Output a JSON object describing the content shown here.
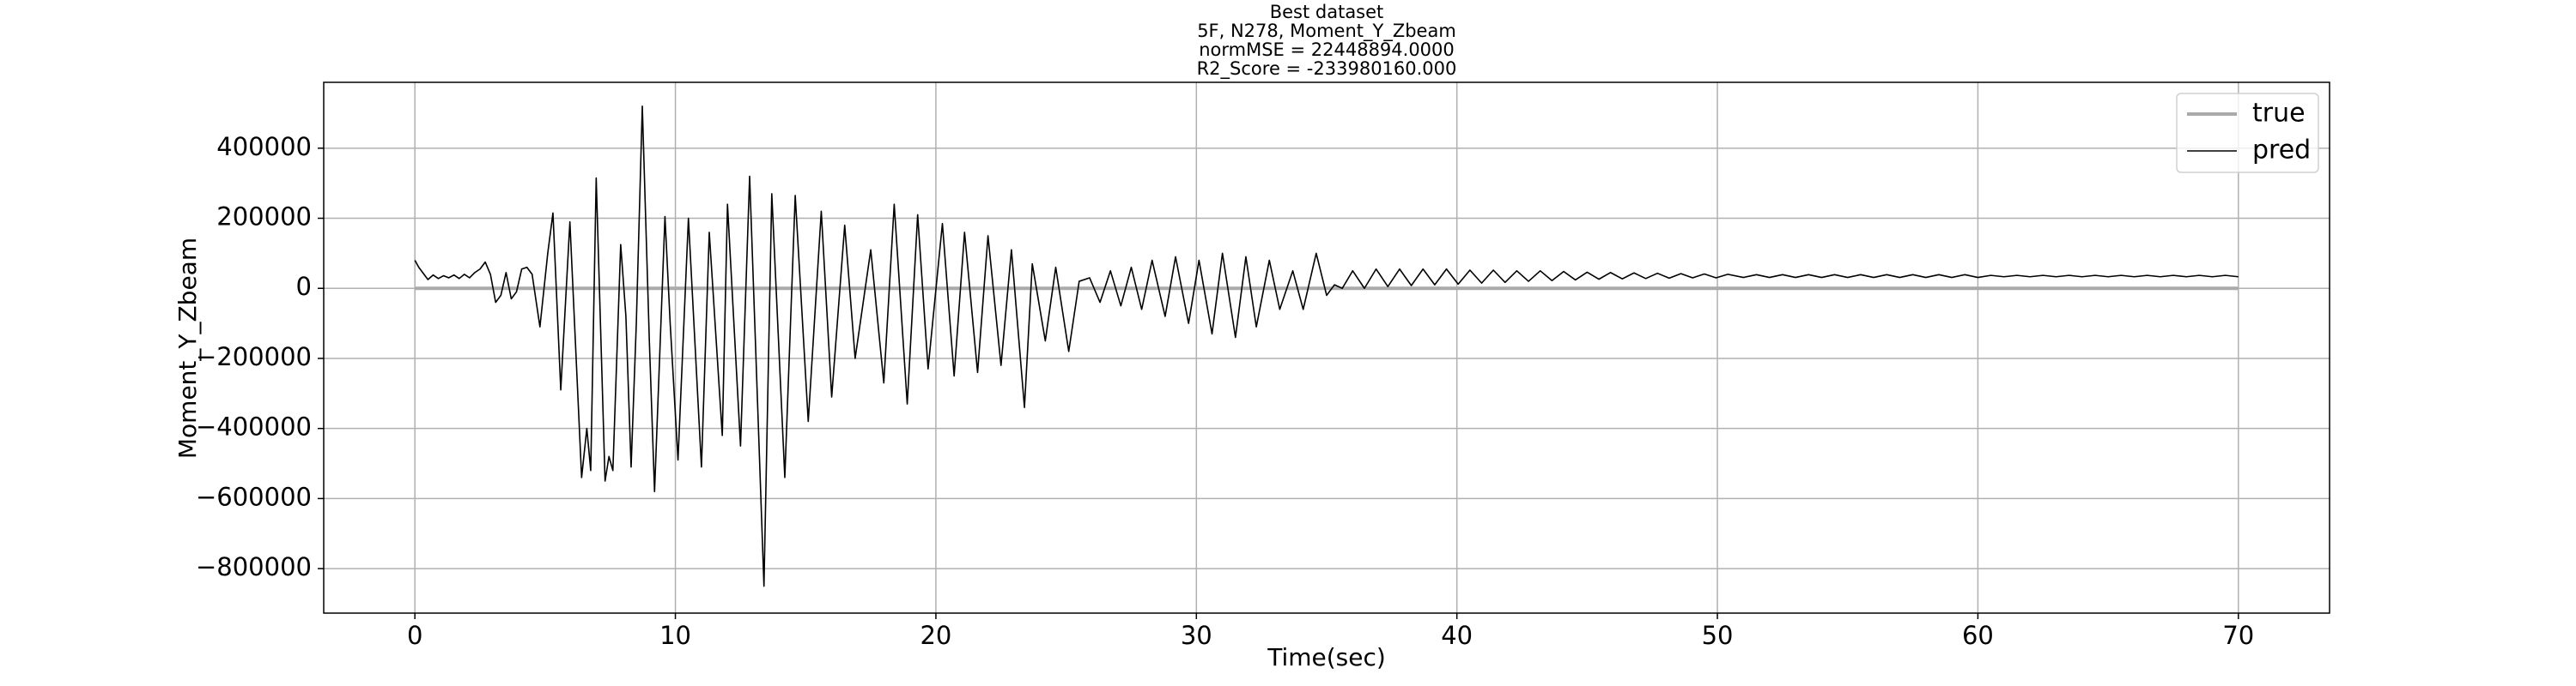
{
  "chart_data": {
    "type": "line",
    "title": [
      "Best dataset",
      "5F, N278, Moment_Y_Zbeam",
      "normMSE = 22448894.0000",
      "R2_Score = -233980160.000"
    ],
    "xlabel": "Time(sec)",
    "ylabel": "Moment_Y_Zbeam",
    "xlim": [
      -3.5,
      73.5
    ],
    "ylim": [
      -927000,
      588000
    ],
    "xticks": [
      0,
      10,
      20,
      30,
      40,
      50,
      60,
      70
    ],
    "yticks": [
      {
        "value": -800000,
        "label": "−800000"
      },
      {
        "value": -600000,
        "label": "−600000"
      },
      {
        "value": -400000,
        "label": "−400000"
      },
      {
        "value": -200000,
        "label": "−200000"
      },
      0,
      200000,
      400000
    ],
    "grid": true,
    "legend": "upper right",
    "series": [
      {
        "name": "true",
        "color": "#aaaaaa",
        "x": [
          0,
          70
        ],
        "values": [
          0,
          0
        ]
      },
      {
        "name": "pred",
        "color": "#000000",
        "x": [
          0,
          0.15,
          0.3,
          0.5,
          0.7,
          0.9,
          1.1,
          1.3,
          1.5,
          1.7,
          1.9,
          2.1,
          2.3,
          2.5,
          2.7,
          2.9,
          3.1,
          3.3,
          3.5,
          3.7,
          3.9,
          4.1,
          4.3,
          4.5,
          4.7,
          4.8,
          5.1,
          5.3,
          5.6,
          5.95,
          6.4,
          6.6,
          6.75,
          6.96,
          7.3,
          7.45,
          7.6,
          7.9,
          8.1,
          8.3,
          8.5,
          8.73,
          9.0,
          9.2,
          9.6,
          9.8,
          10.1,
          10.5,
          11.0,
          11.3,
          11.8,
          12.0,
          12.5,
          12.85,
          13.4,
          13.7,
          14.2,
          14.6,
          15.1,
          15.6,
          16.0,
          16.5,
          16.9,
          17.5,
          18.0,
          18.4,
          18.9,
          19.3,
          19.7,
          20.25,
          20.7,
          21.1,
          21.6,
          22.0,
          22.5,
          22.9,
          23.4,
          23.7,
          24.2,
          24.6,
          25.1,
          25.5,
          25.9,
          26.3,
          26.7,
          27.1,
          27.5,
          27.9,
          28.3,
          28.8,
          29.2,
          29.7,
          30.1,
          30.6,
          31.0,
          31.5,
          31.9,
          32.3,
          32.8,
          33.2,
          33.7,
          34.1,
          34.6,
          35.0,
          35.3,
          35.6,
          36,
          36.45,
          36.9,
          37.35,
          37.8,
          38.25,
          38.7,
          39.15,
          39.6,
          40.05,
          40.5,
          40.95,
          41.4,
          41.85,
          42.3,
          42.75,
          43.2,
          43.65,
          44.1,
          44.55,
          45,
          45.45,
          45.9,
          46.35,
          46.8,
          47.25,
          47.7,
          48.15,
          48.6,
          49.05,
          49.5,
          49.95,
          50.4,
          51,
          51.5,
          52,
          52.5,
          53,
          53.5,
          54,
          54.5,
          55,
          55.5,
          56,
          56.5,
          57,
          57.5,
          58,
          58.5,
          59,
          59.5,
          60,
          60.5,
          61,
          61.5,
          62,
          62.5,
          63,
          63.5,
          64,
          64.5,
          65,
          65.5,
          66,
          66.5,
          67,
          67.5,
          68,
          68.5,
          69,
          69.5,
          70
        ],
        "values": [
          80000,
          60000,
          45000,
          25000,
          38000,
          28000,
          36000,
          30000,
          38000,
          28000,
          40000,
          30000,
          45000,
          55000,
          75000,
          40000,
          -40000,
          -20000,
          45000,
          -30000,
          -10000,
          55000,
          60000,
          40000,
          -60000,
          -110000,
          100000,
          215000,
          -290000,
          190000,
          -540000,
          -400000,
          -520000,
          315000,
          -550000,
          -480000,
          -520000,
          125000,
          -80000,
          -510000,
          -100000,
          520000,
          -150000,
          -580000,
          205000,
          -100000,
          -490000,
          200000,
          -510000,
          160000,
          -420000,
          240000,
          -450000,
          320000,
          -850000,
          270000,
          -540000,
          265000,
          -380000,
          220000,
          -310000,
          180000,
          -200000,
          110000,
          -270000,
          240000,
          -330000,
          210000,
          -230000,
          185000,
          -250000,
          160000,
          -240000,
          150000,
          -220000,
          110000,
          -340000,
          70000,
          -150000,
          60000,
          -180000,
          20000,
          30000,
          -40000,
          50000,
          -50000,
          60000,
          -60000,
          80000,
          -80000,
          90000,
          -100000,
          80000,
          -130000,
          100000,
          -140000,
          90000,
          -110000,
          80000,
          -60000,
          50000,
          -60000,
          100000,
          -20000,
          10000,
          0,
          50000,
          0,
          55000,
          5000,
          55000,
          8000,
          55000,
          10000,
          55000,
          12000,
          52000,
          15000,
          52000,
          17000,
          50000,
          20000,
          50000,
          22000,
          48000,
          24000,
          46000,
          26000,
          45000,
          27000,
          44000,
          28000,
          43000,
          29000,
          42000,
          30000,
          41000,
          30000,
          40000,
          31000,
          39000,
          31000,
          39000,
          31000,
          39000,
          31000,
          39000,
          31000,
          39000,
          31000,
          39000,
          31000,
          39000,
          31000,
          39000,
          31000,
          39000,
          31000,
          37000,
          33000,
          37000,
          33000,
          37000,
          33000,
          37000,
          33000,
          37000,
          33000,
          37000,
          33000,
          37000,
          33000,
          37000,
          33000,
          37000,
          33000,
          37000,
          33000
        ]
      }
    ]
  }
}
